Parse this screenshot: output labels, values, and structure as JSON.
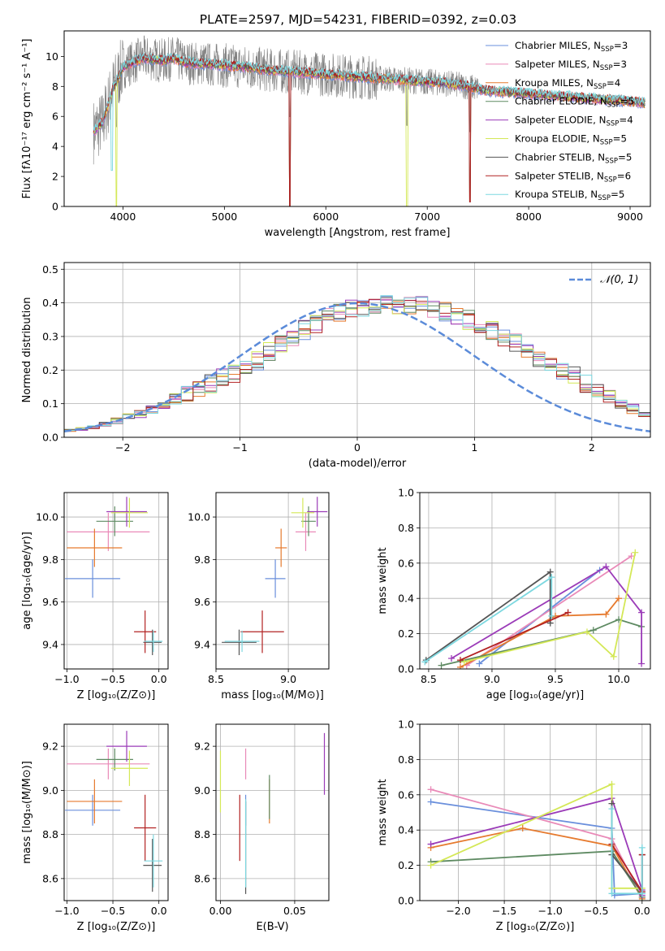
{
  "page_title": "PLATE=2597, MJD=54231, FIBERID=0392, z=0.03",
  "chart_data": [
    {
      "id": "spectrum",
      "type": "line",
      "title": "PLATE=2597, MJD=54231, FIBERID=0392, z=0.03",
      "xlabel": "wavelength [Angstrom, rest frame]",
      "ylabel": "Flux [fλ10⁻¹⁷ erg cm⁻² s⁻¹ A⁻¹]",
      "xlim": [
        3420,
        9200
      ],
      "ylim": [
        0,
        11.7
      ],
      "xticks": [
        4000,
        5000,
        6000,
        7000,
        8000,
        9000
      ],
      "yticks": [
        0,
        2,
        4,
        6,
        8,
        10
      ],
      "grid": false,
      "legend_position": "top-right",
      "legend": [
        {
          "label": "Chabrier MILES, N",
          "sub": "SSP",
          "tail": "=3",
          "color": "#6a8fdc"
        },
        {
          "label": "Salpeter MILES, N",
          "sub": "SSP",
          "tail": "=3",
          "color": "#e98ab8"
        },
        {
          "label": "Kroupa MILES, N",
          "sub": "SSP",
          "tail": "=4",
          "color": "#e67a2e"
        },
        {
          "label": "Chabrier ELODIE, N",
          "sub": "SSP",
          "tail": "=5",
          "color": "#5e8a62"
        },
        {
          "label": "Salpeter ELODIE, N",
          "sub": "SSP",
          "tail": "=4",
          "color": "#9b3bb8"
        },
        {
          "label": "Kroupa ELODIE, N",
          "sub": "SSP",
          "tail": "=5",
          "color": "#d4e857"
        },
        {
          "label": "Chabrier STELIB, N",
          "sub": "SSP",
          "tail": "=5",
          "color": "#555555"
        },
        {
          "label": "Salpeter STELIB, N",
          "sub": "SSP",
          "tail": "=6",
          "color": "#b22222"
        },
        {
          "label": "Kroupa STELIB, N",
          "sub": "SSP",
          "tail": "=5",
          "color": "#7dd8e0"
        }
      ],
      "data_color": "#808080",
      "model_envelope": {
        "x": [
          3710,
          3800,
          3900,
          4000,
          4100,
          4200,
          4300,
          4400,
          4500,
          4600,
          4800,
          5000,
          5200,
          5400,
          5600,
          5800,
          6000,
          6200,
          6400,
          6600,
          6800,
          7000,
          7200,
          7400,
          7600,
          7800,
          8000,
          8200,
          8400,
          8600,
          8800,
          9000,
          9150
        ],
        "y": [
          5.0,
          5.6,
          7.8,
          9.3,
          9.6,
          9.9,
          9.8,
          9.7,
          9.9,
          9.6,
          9.5,
          9.4,
          9.3,
          9.1,
          9.0,
          8.9,
          8.8,
          8.7,
          8.6,
          8.5,
          8.4,
          8.3,
          8.2,
          8.0,
          7.7,
          7.6,
          7.5,
          7.4,
          7.3,
          7.2,
          7.1,
          7.0,
          6.9
        ]
      },
      "absorption_dips": [
        {
          "x": 3730,
          "y": 1.2
        },
        {
          "x": 3890,
          "y": 2.0
        },
        {
          "x": 3935,
          "y": 0.0
        },
        {
          "x": 5645,
          "y": 0.0
        },
        {
          "x": 6800,
          "y": 0.0
        },
        {
          "x": 7420,
          "y": 0.3
        }
      ]
    },
    {
      "id": "residuals",
      "type": "step",
      "xlabel": "(data-model)/error",
      "ylabel": "Normed distribution",
      "xlim": [
        -2.5,
        2.5
      ],
      "ylim": [
        0,
        0.52
      ],
      "xticks": [
        -2,
        -1,
        0,
        1,
        2
      ],
      "yticks": [
        0.0,
        0.1,
        0.2,
        0.3,
        0.4,
        0.5
      ],
      "grid": true,
      "legend_position": "top-right",
      "reference_curve": {
        "label": "𝒩(0, 1)",
        "color": "#5b8bd9",
        "style": "dashed"
      },
      "bin_edges_start": -2.5,
      "bin_width": 0.1,
      "base_profile": [
        0.02,
        0.025,
        0.03,
        0.04,
        0.05,
        0.06,
        0.07,
        0.085,
        0.1,
        0.115,
        0.13,
        0.145,
        0.16,
        0.175,
        0.19,
        0.21,
        0.23,
        0.255,
        0.28,
        0.3,
        0.32,
        0.34,
        0.355,
        0.37,
        0.38,
        0.39,
        0.395,
        0.4,
        0.39,
        0.39,
        0.39,
        0.385,
        0.375,
        0.365,
        0.35,
        0.335,
        0.32,
        0.3,
        0.28,
        0.26,
        0.24,
        0.22,
        0.2,
        0.18,
        0.16,
        0.14,
        0.12,
        0.1,
        0.085,
        0.07
      ]
    },
    {
      "id": "age-vs-Z",
      "type": "errorbar",
      "xlabel": "Z [log₁₀(Z/Z⊙)]",
      "ylabel": "age  [log₁₀(age/yr)]",
      "xlim": [
        -1.03,
        0.1
      ],
      "ylim": [
        9.285,
        10.115
      ],
      "xticks": [
        -1.0,
        -0.5,
        0.0
      ],
      "yticks": [
        9.4,
        9.6,
        9.8,
        10.0
      ],
      "grid": true,
      "points": [
        {
          "color": "#6a8fdc",
          "x": -0.72,
          "xerr": 0.3,
          "y": 9.71,
          "yerr": 0.09
        },
        {
          "color": "#e98ab8",
          "x": -0.55,
          "xerr": 0.45,
          "y": 9.93,
          "yerr": 0.09
        },
        {
          "color": "#e67a2e",
          "x": -0.7,
          "xerr": 0.3,
          "y": 9.855,
          "yerr": 0.09
        },
        {
          "color": "#5e8a62",
          "x": -0.48,
          "xerr": 0.2,
          "y": 9.98,
          "yerr": 0.07
        },
        {
          "color": "#9b3bb8",
          "x": -0.35,
          "xerr": 0.22,
          "y": 10.025,
          "yerr": 0.07
        },
        {
          "color": "#d4e857",
          "x": -0.32,
          "xerr": 0.2,
          "y": 10.02,
          "yerr": 0.07
        },
        {
          "color": "#555555",
          "x": -0.07,
          "xerr": 0.1,
          "y": 9.41,
          "yerr": 0.06
        },
        {
          "color": "#b22222",
          "x": -0.15,
          "xerr": 0.12,
          "y": 9.46,
          "yerr": 0.1
        },
        {
          "color": "#7dd8e0",
          "x": -0.06,
          "xerr": 0.1,
          "y": 9.415,
          "yerr": 0.05
        }
      ]
    },
    {
      "id": "age-vs-mass",
      "type": "errorbar",
      "xlabel": "mass [log₁₀(M/M⊙)]",
      "ylabel": "",
      "xlim": [
        8.5,
        9.28
      ],
      "ylim": [
        9.285,
        10.115
      ],
      "xticks": [
        8.5,
        9.0
      ],
      "yticks": [
        9.4,
        9.6,
        9.8,
        10.0
      ],
      "grid": true,
      "points": [
        {
          "color": "#6a8fdc",
          "x": 8.91,
          "xerr": 0.07,
          "y": 9.71,
          "yerr": 0.09
        },
        {
          "color": "#e98ab8",
          "x": 9.12,
          "xerr": 0.07,
          "y": 9.93,
          "yerr": 0.09
        },
        {
          "color": "#e67a2e",
          "x": 8.95,
          "xerr": 0.04,
          "y": 9.855,
          "yerr": 0.09
        },
        {
          "color": "#5e8a62",
          "x": 9.14,
          "xerr": 0.05,
          "y": 9.98,
          "yerr": 0.07
        },
        {
          "color": "#9b3bb8",
          "x": 9.2,
          "xerr": 0.07,
          "y": 10.025,
          "yerr": 0.07
        },
        {
          "color": "#d4e857",
          "x": 9.1,
          "xerr": 0.08,
          "y": 10.02,
          "yerr": 0.07
        },
        {
          "color": "#555555",
          "x": 8.66,
          "xerr": 0.12,
          "y": 9.41,
          "yerr": 0.06
        },
        {
          "color": "#b22222",
          "x": 8.82,
          "xerr": 0.15,
          "y": 9.46,
          "yerr": 0.1
        },
        {
          "color": "#7dd8e0",
          "x": 8.68,
          "xerr": 0.12,
          "y": 9.415,
          "yerr": 0.05
        }
      ]
    },
    {
      "id": "mw-vs-age",
      "type": "line",
      "xlabel": "age  [log₁₀(age/yr)]",
      "ylabel": "mass weight",
      "xlim": [
        8.43,
        10.25
      ],
      "ylim": [
        0,
        1
      ],
      "xticks": [
        8.5,
        9.0,
        9.5,
        10.0
      ],
      "yticks": [
        0.0,
        0.2,
        0.4,
        0.6,
        0.8,
        1.0
      ],
      "grid": true,
      "series": [
        {
          "color": "#6a8fdc",
          "x": [
            8.9,
            9.85
          ],
          "y": [
            0.03,
            0.56
          ]
        },
        {
          "color": "#e98ab8",
          "x": [
            8.8,
            10.1
          ],
          "y": [
            0.02,
            0.64
          ]
        },
        {
          "color": "#e67a2e",
          "x": [
            8.75,
            9.5,
            9.9,
            10.0
          ],
          "y": [
            0.01,
            0.3,
            0.31,
            0.4
          ]
        },
        {
          "color": "#5e8a62",
          "x": [
            8.6,
            9.8,
            10.0,
            10.18
          ],
          "y": [
            0.02,
            0.22,
            0.28,
            0.24
          ]
        },
        {
          "color": "#9b3bb8",
          "x": [
            8.68,
            9.9,
            10.18,
            10.18
          ],
          "y": [
            0.06,
            0.58,
            0.32,
            0.03
          ]
        },
        {
          "color": "#d4e857",
          "x": [
            8.78,
            9.75,
            9.96,
            10.13
          ],
          "y": [
            0.04,
            0.21,
            0.07,
            0.66
          ]
        },
        {
          "color": "#555555",
          "x": [
            8.48,
            9.46,
            9.46
          ],
          "y": [
            0.05,
            0.55,
            0.26
          ]
        },
        {
          "color": "#b22222",
          "x": [
            8.75,
            9.6
          ],
          "y": [
            0.05,
            0.32
          ]
        },
        {
          "color": "#7dd8e0",
          "x": [
            8.47,
            9.47,
            9.47
          ],
          "y": [
            0.04,
            0.52,
            0.3
          ]
        }
      ]
    },
    {
      "id": "mass-vs-Z",
      "type": "errorbar",
      "xlabel": "Z [log₁₀(Z/Z⊙)]",
      "ylabel": "mass [log₁₀(M/M⊙)]",
      "xlim": [
        -1.03,
        0.1
      ],
      "ylim": [
        8.5,
        9.3
      ],
      "xticks": [
        -1.0,
        -0.5,
        0.0
      ],
      "yticks": [
        8.6,
        8.8,
        9.0,
        9.2
      ],
      "grid": true,
      "points": [
        {
          "color": "#6a8fdc",
          "x": -0.72,
          "xerr": 0.3,
          "y": 8.91,
          "yerr": 0.07
        },
        {
          "color": "#e98ab8",
          "x": -0.55,
          "xerr": 0.45,
          "y": 9.12,
          "yerr": 0.07
        },
        {
          "color": "#e67a2e",
          "x": -0.7,
          "xerr": 0.3,
          "y": 8.95,
          "yerr": 0.1
        },
        {
          "color": "#5e8a62",
          "x": -0.48,
          "xerr": 0.2,
          "y": 9.14,
          "yerr": 0.05
        },
        {
          "color": "#9b3bb8",
          "x": -0.35,
          "xerr": 0.22,
          "y": 9.2,
          "yerr": 0.07
        },
        {
          "color": "#d4e857",
          "x": -0.32,
          "xerr": 0.2,
          "y": 9.1,
          "yerr": 0.08
        },
        {
          "color": "#555555",
          "x": -0.07,
          "xerr": 0.1,
          "y": 8.66,
          "yerr": 0.12
        },
        {
          "color": "#b22222",
          "x": -0.15,
          "xerr": 0.12,
          "y": 8.83,
          "yerr": 0.15
        },
        {
          "color": "#7dd8e0",
          "x": -0.06,
          "xerr": 0.1,
          "y": 8.68,
          "yerr": 0.12
        }
      ]
    },
    {
      "id": "mass-vs-ebv",
      "type": "errorbar",
      "xlabel": "E(B-V)",
      "ylabel": "",
      "xlim": [
        -0.003,
        0.073
      ],
      "ylim": [
        8.5,
        9.3
      ],
      "xticks": [
        0.0,
        0.05
      ],
      "xtick_labels": [
        "0.00",
        "0.05"
      ],
      "yticks": [
        8.6,
        8.8,
        9.0,
        9.2
      ],
      "grid": true,
      "points": [
        {
          "color": "#6a8fdc",
          "x": 0.017,
          "xerr": 0.0,
          "y": 8.91,
          "yerr": 0.07
        },
        {
          "color": "#e98ab8",
          "x": 0.017,
          "xerr": 0.0,
          "y": 9.12,
          "yerr": 0.07
        },
        {
          "color": "#e67a2e",
          "x": 0.033,
          "xerr": 0.0,
          "y": 8.95,
          "yerr": 0.1
        },
        {
          "color": "#5e8a62",
          "x": 0.033,
          "xerr": 0.0,
          "y": 8.97,
          "yerr": 0.1
        },
        {
          "color": "#9b3bb8",
          "x": 0.07,
          "xerr": 0.0,
          "y": 9.12,
          "yerr": 0.14
        },
        {
          "color": "#d4e857",
          "x": 0.0,
          "xerr": 0.0,
          "y": 9.04,
          "yerr": 0.14
        },
        {
          "color": "#555555",
          "x": 0.017,
          "xerr": 0.0,
          "y": 8.74,
          "yerr": 0.21
        },
        {
          "color": "#b22222",
          "x": 0.013,
          "xerr": 0.0,
          "y": 8.83,
          "yerr": 0.15
        },
        {
          "color": "#7dd8e0",
          "x": 0.017,
          "xerr": 0.0,
          "y": 8.76,
          "yerr": 0.2
        }
      ]
    },
    {
      "id": "mw-vs-Z",
      "type": "line",
      "xlabel": "Z [log₁₀(Z/Z⊙)]",
      "ylabel": "mass weight",
      "xlim": [
        -2.42,
        0.09
      ],
      "ylim": [
        0,
        1
      ],
      "xticks": [
        -2.0,
        -1.5,
        -1.0,
        -0.5,
        0.0
      ],
      "yticks": [
        0.0,
        0.2,
        0.4,
        0.6,
        0.8,
        1.0
      ],
      "grid": true,
      "series": [
        {
          "color": "#6a8fdc",
          "x": [
            -2.3,
            -0.33,
            -0.3,
            0.0
          ],
          "y": [
            0.56,
            0.41,
            0.03,
            0.04
          ]
        },
        {
          "color": "#e98ab8",
          "x": [
            -2.3,
            -0.33,
            0.0,
            0.0
          ],
          "y": [
            0.63,
            0.35,
            0.02,
            0.02
          ]
        },
        {
          "color": "#e67a2e",
          "x": [
            -2.3,
            -1.3,
            -0.33,
            0.0
          ],
          "y": [
            0.3,
            0.41,
            0.31,
            0.01
          ]
        },
        {
          "color": "#5e8a62",
          "x": [
            -2.3,
            -0.33,
            0.0
          ],
          "y": [
            0.22,
            0.28,
            0.02
          ]
        },
        {
          "color": "#9b3bb8",
          "x": [
            -2.3,
            -0.33,
            0.0,
            0.0
          ],
          "y": [
            0.32,
            0.58,
            0.06,
            0.03
          ]
        },
        {
          "color": "#d4e857",
          "x": [
            -2.3,
            -0.33,
            -0.33,
            0.0
          ],
          "y": [
            0.2,
            0.66,
            0.07,
            0.07
          ]
        },
        {
          "color": "#555555",
          "x": [
            -0.33,
            -0.33,
            0.0,
            0.0
          ],
          "y": [
            0.55,
            0.26,
            0.05,
            0.26
          ]
        },
        {
          "color": "#b22222",
          "x": [
            -0.33,
            0.0,
            0.0
          ],
          "y": [
            0.32,
            0.05,
            0.26
          ]
        },
        {
          "color": "#7dd8e0",
          "x": [
            -0.33,
            -0.33,
            0.0,
            0.0
          ],
          "y": [
            0.52,
            0.04,
            0.04,
            0.3
          ]
        }
      ]
    }
  ]
}
